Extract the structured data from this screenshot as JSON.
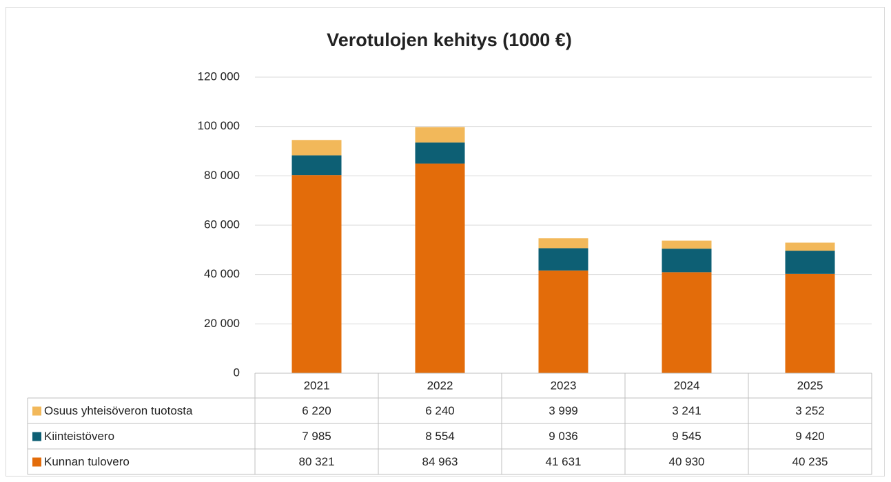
{
  "chart_data": {
    "type": "bar",
    "stacked": true,
    "title": "Verotulojen kehitys (1000 €)",
    "categories": [
      "2021",
      "2022",
      "2023",
      "2024",
      "2025"
    ],
    "series": [
      {
        "name": "Kunnan tulovero",
        "color": "#e36c0a",
        "values": [
          80321,
          84963,
          41631,
          40930,
          40235
        ],
        "value_labels": [
          "80 321",
          "84 963",
          "41 631",
          "40 930",
          "40 235"
        ]
      },
      {
        "name": "Kiinteistövero",
        "color": "#0d5f74",
        "values": [
          7985,
          8554,
          9036,
          9545,
          9420
        ],
        "value_labels": [
          "7 985",
          "8 554",
          "9 036",
          "9 545",
          "9 420"
        ]
      },
      {
        "name": "Osuus yhteisöveron tuotosta",
        "color": "#f2b85a",
        "values": [
          6220,
          6240,
          3999,
          3241,
          3252
        ],
        "value_labels": [
          "6 220",
          "6 240",
          "3 999",
          "3 241",
          "3 252"
        ]
      }
    ],
    "ylim": [
      0,
      120000
    ],
    "yticks": [
      0,
      {
        "value": 20000,
        "label": "20 000"
      },
      {
        "value": 40000,
        "label": "40 000"
      },
      {
        "value": 60000,
        "label": "60 000"
      },
      {
        "value": 80000,
        "label": "80 000"
      },
      {
        "value": 100000,
        "label": "100 000"
      },
      {
        "value": 120000,
        "label": "120 000"
      }
    ],
    "grid": true
  }
}
